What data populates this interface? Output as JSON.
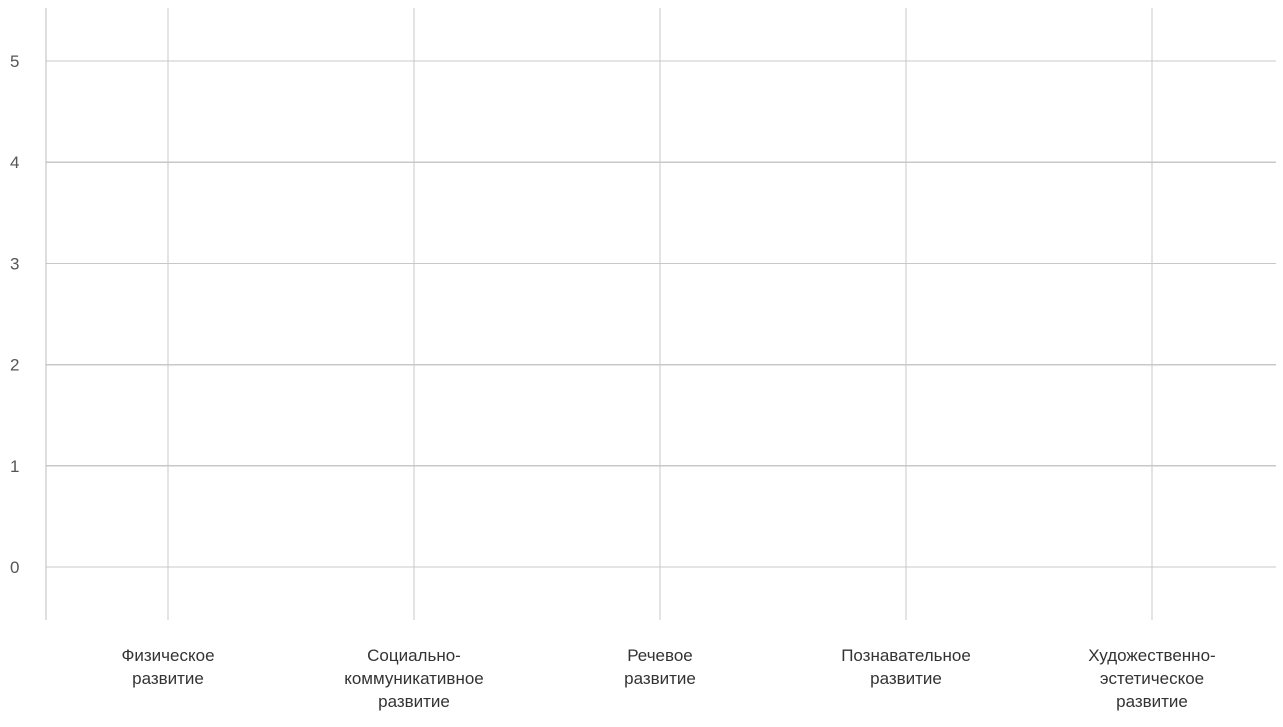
{
  "chart_data": {
    "type": "bar",
    "categories": [
      "Физическое развитие",
      "Социально-коммуникативное развитие",
      "Речевое развитие",
      "Познавательное развитие",
      "Художественно-эстетическое развитие"
    ],
    "category_label_lines": [
      [
        "Физическое",
        "развитие"
      ],
      [
        "Социально-",
        "коммуникативное",
        "развитие"
      ],
      [
        "Речевое",
        "развитие"
      ],
      [
        "Познавательное",
        "развитие"
      ],
      [
        "Художественно-",
        "эстетическое",
        "развитие"
      ]
    ],
    "series": [],
    "ylim": [
      -0.5,
      5.5
    ],
    "yticks": [
      "0",
      "1",
      "2",
      "3",
      "4",
      "5"
    ],
    "grid": true,
    "legend": "none",
    "colors": {
      "grid": "#c8c8c8",
      "tick_text": "#555555",
      "category_text": "#333333"
    }
  }
}
